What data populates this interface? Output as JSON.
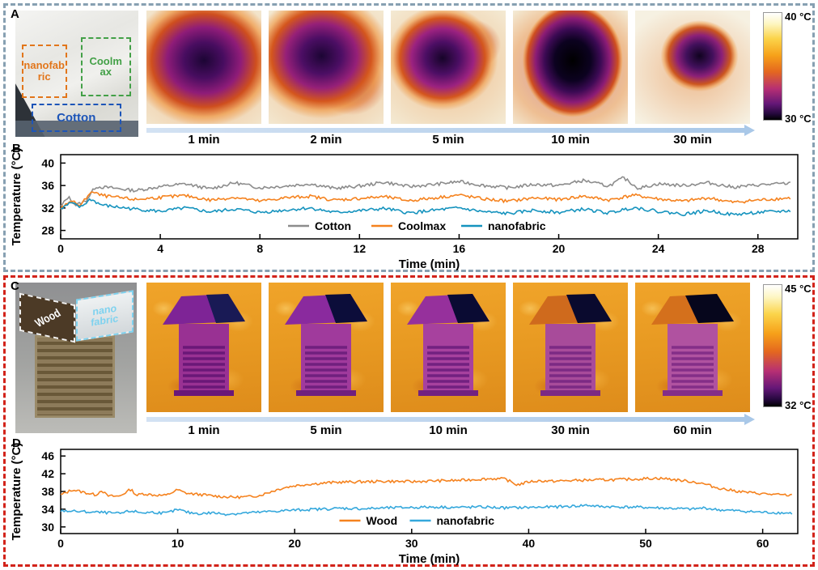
{
  "panels": {
    "A": {
      "label": "A",
      "photo_labels": {
        "nanofabric": "nanofabric",
        "coolmax": "Coolmax",
        "cotton": "Cotton"
      },
      "time_labels": [
        "1 min",
        "2 min",
        "5 min",
        "10 min",
        "30 min"
      ],
      "colorbar": {
        "max": "40 °C",
        "min": "30 °C"
      }
    },
    "B": {
      "label": "B"
    },
    "C": {
      "label": "C",
      "photo_labels": {
        "wood": "Wood",
        "nanofabric": "nano fabric"
      },
      "time_labels": [
        "1 min",
        "5 min",
        "10 min",
        "30 min",
        "60 min"
      ],
      "colorbar": {
        "max": "45 °C",
        "min": "32 °C"
      }
    },
    "D": {
      "label": "D"
    }
  },
  "chart_data": [
    {
      "id": "B",
      "type": "line",
      "xlabel": "Time (min)",
      "ylabel": "Temperature (°C)",
      "xlim": [
        0,
        29.6
      ],
      "xticks": [
        0,
        4,
        8,
        12,
        16,
        20,
        24,
        28
      ],
      "ylim": [
        26.5,
        41.5
      ],
      "yticks": [
        28,
        32,
        36,
        40
      ],
      "grid": false,
      "legend_position": "inside-bottom-center",
      "jitter": 0.28,
      "series": [
        {
          "name": "Cotton",
          "color": "#8c8c8c",
          "x": [
            0,
            0.3,
            0.6,
            1.0,
            1.4,
            2,
            3,
            4,
            5,
            6,
            7,
            8,
            9,
            10,
            11,
            12,
            13,
            14,
            15,
            16,
            17,
            18,
            19,
            20,
            21,
            22,
            22.6,
            23.2,
            24,
            25,
            26,
            27,
            28,
            29.3
          ],
          "y": [
            32.2,
            34.0,
            32.5,
            33.2,
            35.8,
            35.6,
            35.1,
            35.8,
            36.3,
            35.4,
            36.5,
            35.6,
            35.9,
            36.3,
            35.5,
            35.9,
            36.6,
            35.8,
            36.2,
            36.7,
            36.0,
            35.6,
            36.2,
            36.0,
            36.9,
            35.9,
            37.4,
            35.5,
            36.3,
            36.0,
            36.5,
            35.7,
            36.1,
            36.4
          ]
        },
        {
          "name": "Coolmax",
          "color": "#f5821e",
          "x": [
            0,
            0.4,
            0.8,
            1.2,
            1.6,
            2,
            3,
            4,
            5,
            6,
            7,
            8,
            9,
            10,
            11,
            12,
            13,
            14,
            15,
            16,
            17,
            18,
            19,
            20,
            21,
            22,
            23,
            24,
            25,
            26,
            27,
            28,
            29.3
          ],
          "y": [
            32.0,
            33.3,
            32.4,
            34.9,
            34.3,
            34.0,
            33.5,
            33.9,
            34.2,
            33.4,
            33.9,
            33.2,
            33.8,
            34.1,
            33.4,
            33.7,
            34.0,
            33.3,
            33.8,
            34.3,
            33.6,
            33.2,
            33.8,
            33.5,
            34.1,
            33.4,
            34.3,
            33.6,
            33.2,
            33.8,
            33.0,
            33.4,
            33.8
          ]
        },
        {
          "name": "nanofabric",
          "color": "#1593be",
          "x": [
            0,
            0.4,
            0.8,
            1.2,
            1.6,
            2,
            3,
            4,
            5,
            6,
            7,
            8,
            9,
            10,
            11,
            12,
            13,
            14,
            15,
            16,
            17,
            18,
            19,
            20,
            21,
            22,
            23,
            24,
            25,
            26,
            27,
            28,
            29.3
          ],
          "y": [
            31.8,
            32.9,
            32.1,
            33.6,
            32.6,
            32.3,
            31.8,
            31.4,
            32.0,
            31.3,
            31.8,
            31.2,
            31.6,
            32.0,
            31.2,
            31.5,
            31.9,
            31.1,
            31.6,
            32.0,
            31.3,
            31.0,
            31.6,
            31.2,
            31.8,
            31.1,
            32.1,
            31.4,
            30.9,
            31.5,
            30.8,
            31.2,
            31.5
          ]
        }
      ]
    },
    {
      "id": "D",
      "type": "line",
      "xlabel": "Time (min)",
      "ylabel": "Temperature (°C)",
      "xlim": [
        0,
        63
      ],
      "xticks": [
        0,
        10,
        20,
        30,
        40,
        50,
        60
      ],
      "ylim": [
        28.5,
        47.5
      ],
      "yticks": [
        30,
        34,
        38,
        42,
        46
      ],
      "grid": false,
      "legend_position": "inside-bottom-center",
      "jitter": 0.3,
      "series": [
        {
          "name": "Wood",
          "color": "#f5821e",
          "x": [
            0,
            1,
            2,
            3,
            3.5,
            4,
            5,
            6,
            6.5,
            7,
            8,
            9,
            10,
            10.5,
            11,
            12,
            13,
            14,
            15,
            16,
            17,
            18,
            19,
            20,
            21,
            22,
            23,
            24,
            26,
            28,
            30,
            32,
            34,
            36,
            37,
            38,
            39,
            39.5,
            40,
            41,
            42,
            44,
            46,
            48,
            50,
            51,
            52,
            53,
            54,
            55,
            56,
            57,
            58,
            59,
            60,
            61,
            62.5
          ],
          "y": [
            37.2,
            38.4,
            37.8,
            37.2,
            38.3,
            37.0,
            36.9,
            38.5,
            37.1,
            37.5,
            37.2,
            37.1,
            38.4,
            37.8,
            37.5,
            37.3,
            37.0,
            36.8,
            36.7,
            36.8,
            37.1,
            38.0,
            38.8,
            39.3,
            39.6,
            39.8,
            40.0,
            40.1,
            40.2,
            40.3,
            40.2,
            40.4,
            40.5,
            40.8,
            40.9,
            40.8,
            39.5,
            39.8,
            40.2,
            40.4,
            40.3,
            40.5,
            40.6,
            40.7,
            40.9,
            41.0,
            40.8,
            40.5,
            40.2,
            39.7,
            38.9,
            38.4,
            38.0,
            37.7,
            37.5,
            37.3,
            37.1
          ]
        },
        {
          "name": "nanofabric",
          "color": "#35a8dc",
          "x": [
            0,
            2,
            4,
            5,
            6,
            7,
            8,
            9,
            10,
            11,
            12,
            13,
            14,
            15,
            16,
            17,
            18,
            20,
            22,
            24,
            26,
            28,
            30,
            32,
            34,
            36,
            38,
            40,
            42,
            44,
            45,
            46,
            48,
            50,
            52,
            54,
            55,
            56,
            58,
            60,
            62.5
          ],
          "y": [
            33.7,
            33.4,
            33.2,
            33.0,
            33.6,
            33.2,
            33.3,
            33.1,
            33.9,
            33.2,
            33.0,
            33.2,
            32.9,
            33.0,
            33.2,
            33.3,
            33.5,
            33.8,
            34.0,
            34.2,
            34.1,
            34.3,
            34.4,
            34.5,
            34.4,
            34.5,
            34.3,
            34.4,
            34.5,
            34.7,
            34.9,
            34.6,
            34.5,
            34.4,
            34.2,
            34.0,
            34.3,
            33.9,
            33.6,
            33.3,
            33.1
          ]
        }
      ]
    }
  ]
}
